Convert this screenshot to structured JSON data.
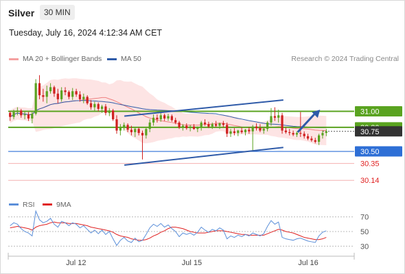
{
  "header": {
    "instrument": "Silver",
    "timeframe": "30 MIN",
    "timestamp": "Tuesday, July 16, 2024 4:12:34 AM CET"
  },
  "legend": {
    "bollinger": {
      "label": "MA 20 + Bollinger Bands",
      "color": "#f08080"
    },
    "ma50": {
      "label": "MA 50",
      "color": "#2e5aa8"
    }
  },
  "copyright": "Research © 2024 Trading Central",
  "chart_data": [
    {
      "type": "candlestick",
      "ylim": [
        29.98,
        31.55
      ],
      "x_ticks": [
        "Jul 12",
        "Jul 15",
        "Jul 16"
      ],
      "price_levels": [
        {
          "value": 31.0,
          "label": "31.00",
          "color": "#5aa320",
          "style": "badge"
        },
        {
          "value": 30.8,
          "label": "30.80",
          "color": "#5aa320",
          "style": "badge"
        },
        {
          "value": 30.75,
          "label": "30.75",
          "color": "#333333",
          "style": "badge"
        },
        {
          "value": 30.5,
          "label": "30.50",
          "color": "#2e6fd6",
          "style": "badge"
        },
        {
          "value": 30.35,
          "label": "30.35",
          "color": "#e02020",
          "style": "text"
        },
        {
          "value": 30.14,
          "label": "30.14",
          "color": "#e02020",
          "style": "text"
        }
      ],
      "channel": {
        "upper": [
          [
            0.363,
            30.94
          ],
          [
            0.86,
            31.14
          ]
        ],
        "lower": [
          [
            0.363,
            30.33
          ],
          [
            0.86,
            30.55
          ]
        ]
      },
      "arrow": {
        "from": [
          0.905,
          30.74
        ],
        "to": [
          0.975,
          31.02
        ]
      },
      "ohlc": [
        [
          30.98,
          31.0,
          30.88,
          30.93
        ],
        [
          30.93,
          31.02,
          30.9,
          30.99
        ],
        [
          30.99,
          31.05,
          30.95,
          31.01
        ],
        [
          31.01,
          31.03,
          30.92,
          30.95
        ],
        [
          30.95,
          31.0,
          30.9,
          30.96
        ],
        [
          30.96,
          30.99,
          30.88,
          30.91
        ],
        [
          30.91,
          31.0,
          30.85,
          30.97
        ],
        [
          30.97,
          31.4,
          30.95,
          31.35
        ],
        [
          31.35,
          31.45,
          31.15,
          31.2
        ],
        [
          31.2,
          31.28,
          31.12,
          31.18
        ],
        [
          31.18,
          31.32,
          31.1,
          31.25
        ],
        [
          31.25,
          31.35,
          31.22,
          31.3
        ],
        [
          31.3,
          31.32,
          31.18,
          31.22
        ],
        [
          31.22,
          31.28,
          31.1,
          31.15
        ],
        [
          31.15,
          31.3,
          31.12,
          31.26
        ],
        [
          31.26,
          31.3,
          31.2,
          31.24
        ],
        [
          31.24,
          31.26,
          31.15,
          31.18
        ],
        [
          31.18,
          31.29,
          31.14,
          31.25
        ],
        [
          31.25,
          31.28,
          31.18,
          31.21
        ],
        [
          31.21,
          31.25,
          31.12,
          31.15
        ],
        [
          31.15,
          31.22,
          31.1,
          31.18
        ],
        [
          31.18,
          31.2,
          31.08,
          31.1
        ],
        [
          31.1,
          31.14,
          31.02,
          31.05
        ],
        [
          31.05,
          31.12,
          31.0,
          31.09
        ],
        [
          31.09,
          31.11,
          31.0,
          31.03
        ],
        [
          31.03,
          31.08,
          30.98,
          31.06
        ],
        [
          31.06,
          31.09,
          30.95,
          30.98
        ],
        [
          30.98,
          31.04,
          30.94,
          31.01
        ],
        [
          31.01,
          31.03,
          30.88,
          30.9
        ],
        [
          30.9,
          30.95,
          30.72,
          30.76
        ],
        [
          30.76,
          30.84,
          30.7,
          30.8
        ],
        [
          30.8,
          30.86,
          30.76,
          30.83
        ],
        [
          30.83,
          30.85,
          30.74,
          30.77
        ],
        [
          30.77,
          30.82,
          30.7,
          30.74
        ],
        [
          30.74,
          30.8,
          30.68,
          30.78
        ],
        [
          30.78,
          30.8,
          30.7,
          30.73
        ],
        [
          30.73,
          30.76,
          30.4,
          30.7
        ],
        [
          30.7,
          30.8,
          30.66,
          30.78
        ],
        [
          30.78,
          30.9,
          30.74,
          30.86
        ],
        [
          30.86,
          30.96,
          30.82,
          30.92
        ],
        [
          30.92,
          30.96,
          30.86,
          30.9
        ],
        [
          30.9,
          30.98,
          30.87,
          30.95
        ],
        [
          30.95,
          30.97,
          30.88,
          30.91
        ],
        [
          30.91,
          30.97,
          30.88,
          30.94
        ],
        [
          30.94,
          30.96,
          30.87,
          30.89
        ],
        [
          30.89,
          30.92,
          30.84,
          30.86
        ],
        [
          30.86,
          30.88,
          30.78,
          30.8
        ],
        [
          30.8,
          30.84,
          30.76,
          30.82
        ],
        [
          30.82,
          30.85,
          30.77,
          30.79
        ],
        [
          30.79,
          30.83,
          30.75,
          30.81
        ],
        [
          30.81,
          30.84,
          30.77,
          30.78
        ],
        [
          30.78,
          30.81,
          30.74,
          30.8
        ],
        [
          30.8,
          30.88,
          30.76,
          30.86
        ],
        [
          30.86,
          30.9,
          30.82,
          30.84
        ],
        [
          30.84,
          30.87,
          30.79,
          30.81
        ],
        [
          30.81,
          30.86,
          30.78,
          30.84
        ],
        [
          30.84,
          30.88,
          30.8,
          30.82
        ],
        [
          30.82,
          30.86,
          30.78,
          30.85
        ],
        [
          30.85,
          30.88,
          30.8,
          30.83
        ],
        [
          30.83,
          30.86,
          30.68,
          30.72
        ],
        [
          30.72,
          30.78,
          30.68,
          30.75
        ],
        [
          30.75,
          30.79,
          30.7,
          30.73
        ],
        [
          30.73,
          30.77,
          30.69,
          30.76
        ],
        [
          30.76,
          30.8,
          30.72,
          30.74
        ],
        [
          30.74,
          30.78,
          30.7,
          30.77
        ],
        [
          30.77,
          30.8,
          30.72,
          30.75
        ],
        [
          30.75,
          30.83,
          30.5,
          30.81
        ],
        [
          30.81,
          30.85,
          30.76,
          30.79
        ],
        [
          30.79,
          30.84,
          30.74,
          30.76
        ],
        [
          30.76,
          30.8,
          30.72,
          30.78
        ],
        [
          30.78,
          30.88,
          30.75,
          30.86
        ],
        [
          30.86,
          31.04,
          30.82,
          30.94
        ],
        [
          30.94,
          31.05,
          30.88,
          30.92
        ],
        [
          30.92,
          31.02,
          30.86,
          30.95
        ],
        [
          30.95,
          30.98,
          30.72,
          30.76
        ],
        [
          30.76,
          30.8,
          30.72,
          30.74
        ],
        [
          30.74,
          30.78,
          30.7,
          30.73
        ],
        [
          30.73,
          30.76,
          30.69,
          30.71
        ],
        [
          30.71,
          30.75,
          30.68,
          30.73
        ],
        [
          30.73,
          30.99,
          30.68,
          30.72
        ],
        [
          30.72,
          30.75,
          30.66,
          30.69
        ],
        [
          30.69,
          30.72,
          30.64,
          30.66
        ],
        [
          30.66,
          30.69,
          30.62,
          30.64
        ],
        [
          30.64,
          30.67,
          30.6,
          30.62
        ],
        [
          30.62,
          30.72,
          30.58,
          30.7
        ],
        [
          30.7,
          30.76,
          30.66,
          30.73
        ],
        [
          30.73,
          30.78,
          30.69,
          30.75
        ]
      ]
    },
    {
      "type": "line",
      "legend": [
        "RSI",
        "9MA"
      ],
      "y_ticks": [
        70,
        50,
        30
      ],
      "ylim": [
        20,
        80
      ],
      "series": [
        {
          "name": "RSI",
          "color": "#5b8fd9"
        },
        {
          "name": "9MA",
          "color": "#e02020"
        }
      ],
      "rsi": [
        58,
        62,
        60,
        54,
        50,
        48,
        44,
        78,
        66,
        62,
        64,
        68,
        60,
        56,
        64,
        62,
        58,
        62,
        60,
        55,
        58,
        53,
        48,
        52,
        47,
        52,
        46,
        50,
        40,
        31,
        38,
        42,
        37,
        35,
        41,
        36,
        38,
        46,
        55,
        60,
        57,
        61,
        56,
        59,
        54,
        50,
        43,
        48,
        46,
        48,
        45,
        49,
        56,
        52,
        49,
        53,
        51,
        55,
        52,
        40,
        44,
        42,
        45,
        43,
        46,
        44,
        48,
        46,
        44,
        47,
        57,
        65,
        60,
        63,
        42,
        40,
        39,
        38,
        40,
        41,
        39,
        37,
        36,
        35,
        44,
        49,
        51
      ],
      "ma9": [
        55,
        56,
        57,
        56,
        55,
        54,
        52,
        56,
        58,
        59,
        60,
        62,
        63,
        62,
        62,
        62,
        61,
        61,
        61,
        60,
        59,
        58,
        56,
        55,
        54,
        53,
        52,
        51,
        49,
        46,
        44,
        43,
        42,
        40,
        39,
        38,
        38,
        39,
        41,
        44,
        46,
        49,
        51,
        54,
        56,
        56,
        55,
        54,
        52,
        50,
        49,
        48,
        48,
        48,
        49,
        50,
        51,
        51,
        51,
        50,
        49,
        48,
        47,
        46,
        46,
        45,
        45,
        45,
        45,
        45,
        47,
        49,
        51,
        53,
        52,
        50,
        49,
        48,
        46,
        44,
        42,
        41,
        40,
        39,
        39,
        40,
        42
      ]
    }
  ]
}
